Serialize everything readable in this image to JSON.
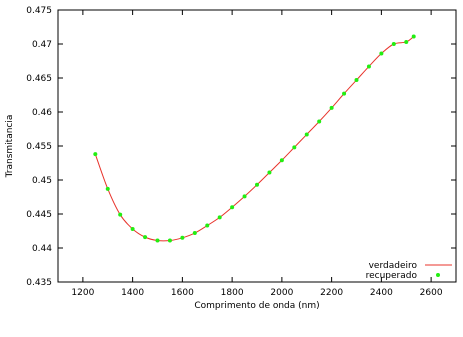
{
  "chart_data": {
    "type": "line",
    "xlabel": "Comprimento de onda (nm)",
    "ylabel": "Transmitancia",
    "xlim": [
      1100,
      2700
    ],
    "ylim": [
      0.435,
      0.475
    ],
    "xticks": [
      1200,
      1400,
      1600,
      1800,
      2000,
      2200,
      2400,
      2600
    ],
    "yticks": [
      0.435,
      0.44,
      0.445,
      0.45,
      0.455,
      0.46,
      0.465,
      0.47,
      0.475
    ],
    "xtick_labels": [
      "1200",
      "1400",
      "1600",
      "1800",
      "2000",
      "2200",
      "2400",
      "2600"
    ],
    "ytick_labels": [
      "0.435",
      "0.44",
      "0.445",
      "0.45",
      "0.455",
      "0.46",
      "0.465",
      "0.47",
      "0.475"
    ],
    "grid": false,
    "legend_position": "bottom-right",
    "series": [
      {
        "name": "verdadeiro",
        "style": "line",
        "color": "#e8332b",
        "x": [
          1250,
          1300,
          1350,
          1400,
          1450,
          1500,
          1550,
          1600,
          1650,
          1700,
          1750,
          1800,
          1850,
          1900,
          1950,
          2000,
          2050,
          2100,
          2150,
          2200,
          2250,
          2300,
          2350,
          2400,
          2450,
          2500,
          2530
        ],
        "y": [
          0.4538,
          0.4487,
          0.4449,
          0.4428,
          0.4416,
          0.4411,
          0.4411,
          0.4415,
          0.4422,
          0.4433,
          0.4445,
          0.446,
          0.4476,
          0.4493,
          0.4511,
          0.4529,
          0.4548,
          0.4567,
          0.4586,
          0.4606,
          0.4627,
          0.4647,
          0.4667,
          0.4686,
          0.47,
          0.4703,
          0.4711
        ]
      },
      {
        "name": "recuperado",
        "style": "points",
        "color": "#22ee11",
        "x": [
          1250,
          1300,
          1350,
          1400,
          1450,
          1500,
          1550,
          1600,
          1650,
          1700,
          1750,
          1800,
          1850,
          1900,
          1950,
          2000,
          2050,
          2100,
          2150,
          2200,
          2250,
          2300,
          2350,
          2400,
          2450,
          2500,
          2530
        ],
        "y": [
          0.4538,
          0.4487,
          0.4449,
          0.4428,
          0.4416,
          0.4411,
          0.4411,
          0.4415,
          0.4422,
          0.4433,
          0.4445,
          0.446,
          0.4476,
          0.4493,
          0.4511,
          0.4529,
          0.4548,
          0.4567,
          0.4586,
          0.4606,
          0.4627,
          0.4647,
          0.4667,
          0.4686,
          0.47,
          0.4703,
          0.4711
        ]
      }
    ]
  }
}
